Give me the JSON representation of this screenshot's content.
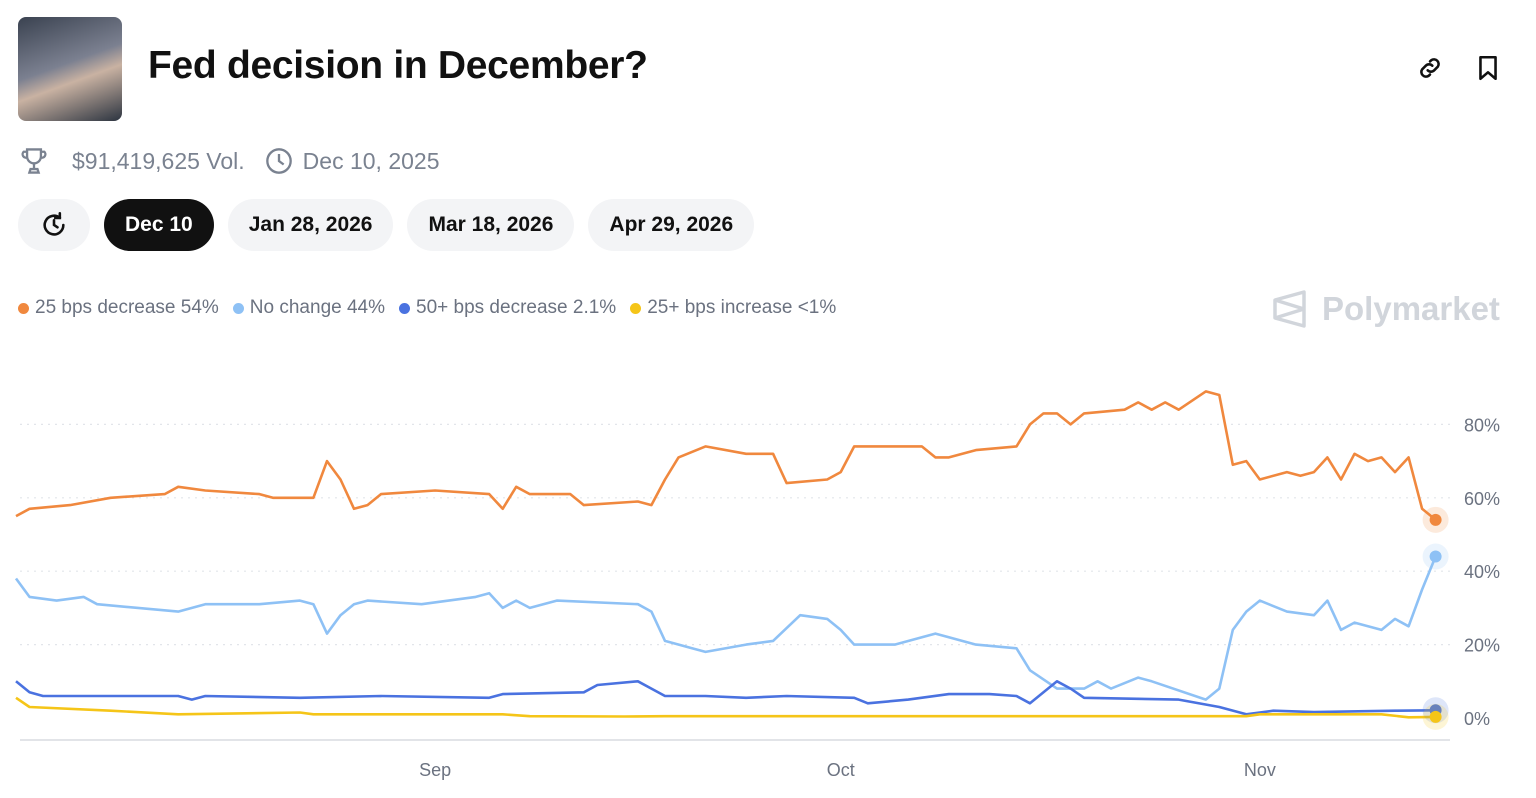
{
  "header": {
    "title": "Fed decision in December?",
    "link_icon": "link-icon",
    "bookmark_icon": "bookmark-icon"
  },
  "meta": {
    "volume": "$91,419,625 Vol.",
    "end_date": "Dec 10, 2025"
  },
  "pills": [
    {
      "label": "Dec 10",
      "active": true
    },
    {
      "label": "Jan 28, 2026"
    },
    {
      "label": "Mar 18, 2026"
    },
    {
      "label": "Apr 29, 2026"
    }
  ],
  "brand": "Polymarket",
  "chart_data": {
    "type": "line",
    "x_type": "date",
    "xlim": [
      "2025-08-01",
      "2025-11-14"
    ],
    "ylim": [
      0,
      90
    ],
    "y_ticks": [
      0,
      20,
      40,
      60,
      80
    ],
    "y_tick_labels": [
      "0%",
      "20%",
      "40%",
      "60%",
      "80%"
    ],
    "x_ticks": [
      "2025-09-01",
      "2025-10-01",
      "2025-11-01"
    ],
    "x_tick_labels": [
      "Sep",
      "Oct",
      "Nov"
    ],
    "grid": "horizontal-dotted",
    "legend_placement": "top-left",
    "series": [
      {
        "name": "25 bps decrease",
        "legend": "25 bps decrease 54%",
        "color": "#f0883e",
        "points": [
          [
            "2025-08-01",
            55
          ],
          [
            "2025-08-02",
            57
          ],
          [
            "2025-08-05",
            58
          ],
          [
            "2025-08-08",
            60
          ],
          [
            "2025-08-12",
            61
          ],
          [
            "2025-08-13",
            63
          ],
          [
            "2025-08-15",
            62
          ],
          [
            "2025-08-19",
            61
          ],
          [
            "2025-08-20",
            60
          ],
          [
            "2025-08-23",
            60
          ],
          [
            "2025-08-24",
            70
          ],
          [
            "2025-08-25",
            65
          ],
          [
            "2025-08-26",
            57
          ],
          [
            "2025-08-27",
            58
          ],
          [
            "2025-08-28",
            61
          ],
          [
            "2025-09-01",
            62
          ],
          [
            "2025-09-05",
            61
          ],
          [
            "2025-09-06",
            57
          ],
          [
            "2025-09-07",
            63
          ],
          [
            "2025-09-08",
            61
          ],
          [
            "2025-09-11",
            61
          ],
          [
            "2025-09-12",
            58
          ],
          [
            "2025-09-16",
            59
          ],
          [
            "2025-09-17",
            58
          ],
          [
            "2025-09-18",
            65
          ],
          [
            "2025-09-19",
            71
          ],
          [
            "2025-09-21",
            74
          ],
          [
            "2025-09-24",
            72
          ],
          [
            "2025-09-26",
            72
          ],
          [
            "2025-09-27",
            64
          ],
          [
            "2025-09-30",
            65
          ],
          [
            "2025-10-01",
            67
          ],
          [
            "2025-10-02",
            74
          ],
          [
            "2025-10-07",
            74
          ],
          [
            "2025-10-08",
            71
          ],
          [
            "2025-10-09",
            71
          ],
          [
            "2025-10-11",
            73
          ],
          [
            "2025-10-14",
            74
          ],
          [
            "2025-10-15",
            80
          ],
          [
            "2025-10-16",
            83
          ],
          [
            "2025-10-17",
            83
          ],
          [
            "2025-10-18",
            80
          ],
          [
            "2025-10-19",
            83
          ],
          [
            "2025-10-22",
            84
          ],
          [
            "2025-10-23",
            86
          ],
          [
            "2025-10-24",
            84
          ],
          [
            "2025-10-25",
            86
          ],
          [
            "2025-10-26",
            84
          ],
          [
            "2025-10-28",
            89
          ],
          [
            "2025-10-29",
            88
          ],
          [
            "2025-10-30",
            69
          ],
          [
            "2025-10-31",
            70
          ],
          [
            "2025-11-01",
            65
          ],
          [
            "2025-11-03",
            67
          ],
          [
            "2025-11-04",
            66
          ],
          [
            "2025-11-05",
            67
          ],
          [
            "2025-11-06",
            71
          ],
          [
            "2025-11-07",
            65
          ],
          [
            "2025-11-08",
            72
          ],
          [
            "2025-11-09",
            70
          ],
          [
            "2025-11-10",
            71
          ],
          [
            "2025-11-11",
            67
          ],
          [
            "2025-11-12",
            71
          ],
          [
            "2025-11-13",
            57
          ],
          [
            "2025-11-14",
            54
          ]
        ]
      },
      {
        "name": "No change",
        "legend": "No change 44%",
        "color": "#8ec1f5",
        "points": [
          [
            "2025-08-01",
            38
          ],
          [
            "2025-08-02",
            33
          ],
          [
            "2025-08-04",
            32
          ],
          [
            "2025-08-06",
            33
          ],
          [
            "2025-08-07",
            31
          ],
          [
            "2025-08-13",
            29
          ],
          [
            "2025-08-15",
            31
          ],
          [
            "2025-08-19",
            31
          ],
          [
            "2025-08-22",
            32
          ],
          [
            "2025-08-23",
            31
          ],
          [
            "2025-08-24",
            23
          ],
          [
            "2025-08-25",
            28
          ],
          [
            "2025-08-26",
            31
          ],
          [
            "2025-08-27",
            32
          ],
          [
            "2025-08-31",
            31
          ],
          [
            "2025-09-04",
            33
          ],
          [
            "2025-09-05",
            34
          ],
          [
            "2025-09-06",
            30
          ],
          [
            "2025-09-07",
            32
          ],
          [
            "2025-09-08",
            30
          ],
          [
            "2025-09-10",
            32
          ],
          [
            "2025-09-16",
            31
          ],
          [
            "2025-09-17",
            29
          ],
          [
            "2025-09-18",
            21
          ],
          [
            "2025-09-20",
            19
          ],
          [
            "2025-09-21",
            18
          ],
          [
            "2025-09-24",
            20
          ],
          [
            "2025-09-26",
            21
          ],
          [
            "2025-09-28",
            28
          ],
          [
            "2025-09-30",
            27
          ],
          [
            "2025-10-01",
            24
          ],
          [
            "2025-10-02",
            20
          ],
          [
            "2025-10-05",
            20
          ],
          [
            "2025-10-08",
            23
          ],
          [
            "2025-10-11",
            20
          ],
          [
            "2025-10-14",
            19
          ],
          [
            "2025-10-15",
            13
          ],
          [
            "2025-10-17",
            8
          ],
          [
            "2025-10-19",
            8
          ],
          [
            "2025-10-20",
            10
          ],
          [
            "2025-10-21",
            8
          ],
          [
            "2025-10-23",
            11
          ],
          [
            "2025-10-24",
            10
          ],
          [
            "2025-10-28",
            5
          ],
          [
            "2025-10-29",
            8
          ],
          [
            "2025-10-30",
            24
          ],
          [
            "2025-10-31",
            29
          ],
          [
            "2025-11-01",
            32
          ],
          [
            "2025-11-03",
            29
          ],
          [
            "2025-11-05",
            28
          ],
          [
            "2025-11-06",
            32
          ],
          [
            "2025-11-07",
            24
          ],
          [
            "2025-11-08",
            26
          ],
          [
            "2025-11-10",
            24
          ],
          [
            "2025-11-11",
            27
          ],
          [
            "2025-11-12",
            25
          ],
          [
            "2025-11-13",
            35
          ],
          [
            "2025-11-14",
            44
          ]
        ]
      },
      {
        "name": "50+ bps decrease",
        "legend": "50+ bps decrease 2.1%",
        "color": "#4a72e0",
        "points": [
          [
            "2025-08-01",
            10
          ],
          [
            "2025-08-02",
            7
          ],
          [
            "2025-08-03",
            6
          ],
          [
            "2025-08-13",
            6
          ],
          [
            "2025-08-14",
            5
          ],
          [
            "2025-08-15",
            6
          ],
          [
            "2025-08-22",
            5.5
          ],
          [
            "2025-08-28",
            6
          ],
          [
            "2025-09-05",
            5.5
          ],
          [
            "2025-09-06",
            6.5
          ],
          [
            "2025-09-12",
            7
          ],
          [
            "2025-09-13",
            9
          ],
          [
            "2025-09-16",
            10
          ],
          [
            "2025-09-17",
            8
          ],
          [
            "2025-09-18",
            6
          ],
          [
            "2025-09-21",
            6
          ],
          [
            "2025-09-24",
            5.5
          ],
          [
            "2025-09-27",
            6
          ],
          [
            "2025-10-02",
            5.5
          ],
          [
            "2025-10-03",
            4
          ],
          [
            "2025-10-06",
            5
          ],
          [
            "2025-10-09",
            6.5
          ],
          [
            "2025-10-12",
            6.5
          ],
          [
            "2025-10-14",
            6
          ],
          [
            "2025-10-15",
            4
          ],
          [
            "2025-10-17",
            10
          ],
          [
            "2025-10-18",
            8
          ],
          [
            "2025-10-19",
            5.5
          ],
          [
            "2025-10-26",
            5
          ],
          [
            "2025-10-29",
            3
          ],
          [
            "2025-10-31",
            1
          ],
          [
            "2025-11-02",
            2
          ],
          [
            "2025-11-05",
            1.6
          ],
          [
            "2025-11-11",
            2
          ],
          [
            "2025-11-14",
            2.1
          ]
        ]
      },
      {
        "name": "25+ bps increase",
        "legend": "25+ bps increase <1%",
        "color": "#f5c518",
        "points": [
          [
            "2025-08-01",
            5.5
          ],
          [
            "2025-08-02",
            3
          ],
          [
            "2025-08-08",
            2
          ],
          [
            "2025-08-13",
            1
          ],
          [
            "2025-08-22",
            1.5
          ],
          [
            "2025-08-23",
            1
          ],
          [
            "2025-09-06",
            1
          ],
          [
            "2025-09-08",
            0.5
          ],
          [
            "2025-09-15",
            0.4
          ],
          [
            "2025-09-18",
            0.5
          ],
          [
            "2025-10-31",
            0.5
          ],
          [
            "2025-11-01",
            1
          ],
          [
            "2025-11-10",
            1
          ],
          [
            "2025-11-12",
            0.2
          ],
          [
            "2025-11-14",
            0.3
          ]
        ]
      }
    ]
  }
}
